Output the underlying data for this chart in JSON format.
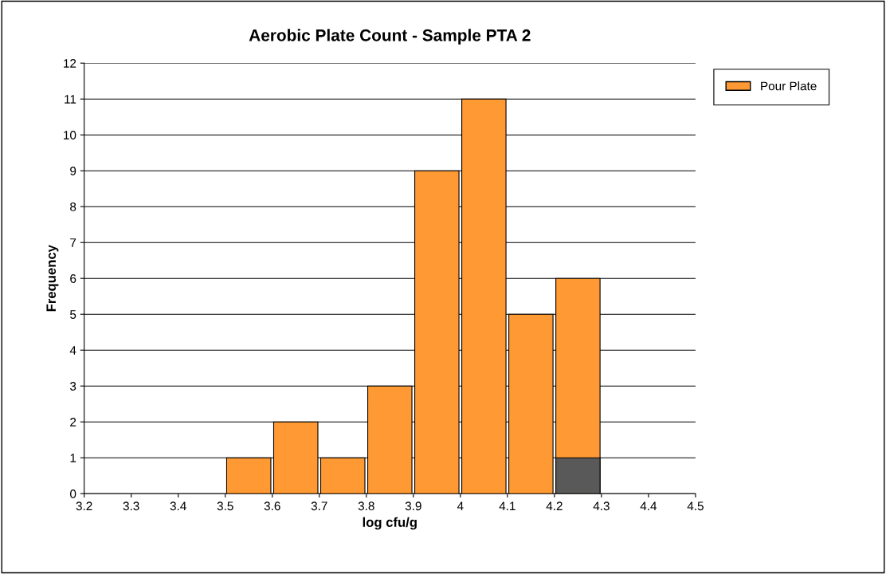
{
  "chart_data": {
    "type": "histogram",
    "title": "Aerobic Plate Count - Sample PTA 2",
    "xlabel": "log cfu/g",
    "ylabel": "Frequency",
    "bins": [
      3.2,
      3.3,
      3.4,
      3.5,
      3.6,
      3.7,
      3.8,
      3.9,
      4.0,
      4.1,
      4.2,
      4.3,
      4.4,
      4.5
    ],
    "series": [
      {
        "name": "Pour Plate",
        "color": "#ff9933",
        "values": [
          0,
          0,
          0,
          1,
          2,
          1,
          3,
          9,
          11,
          5,
          6,
          0,
          0
        ]
      },
      {
        "color": "#595959",
        "values": [
          0,
          0,
          0,
          0,
          0,
          0,
          0,
          0,
          0,
          0,
          1,
          0,
          0
        ]
      }
    ],
    "xlim": [
      3.2,
      4.5
    ],
    "xticks": [
      3.2,
      3.3,
      3.4,
      3.5,
      3.6,
      3.7,
      3.8,
      3.9,
      4,
      4.1,
      4.2,
      4.3,
      4.4,
      4.5
    ],
    "ylim": [
      0,
      12
    ],
    "yticks": [
      0,
      1,
      2,
      3,
      4,
      5,
      6,
      7,
      8,
      9,
      10,
      11,
      12
    ],
    "grid": "y",
    "legend": "top right"
  }
}
